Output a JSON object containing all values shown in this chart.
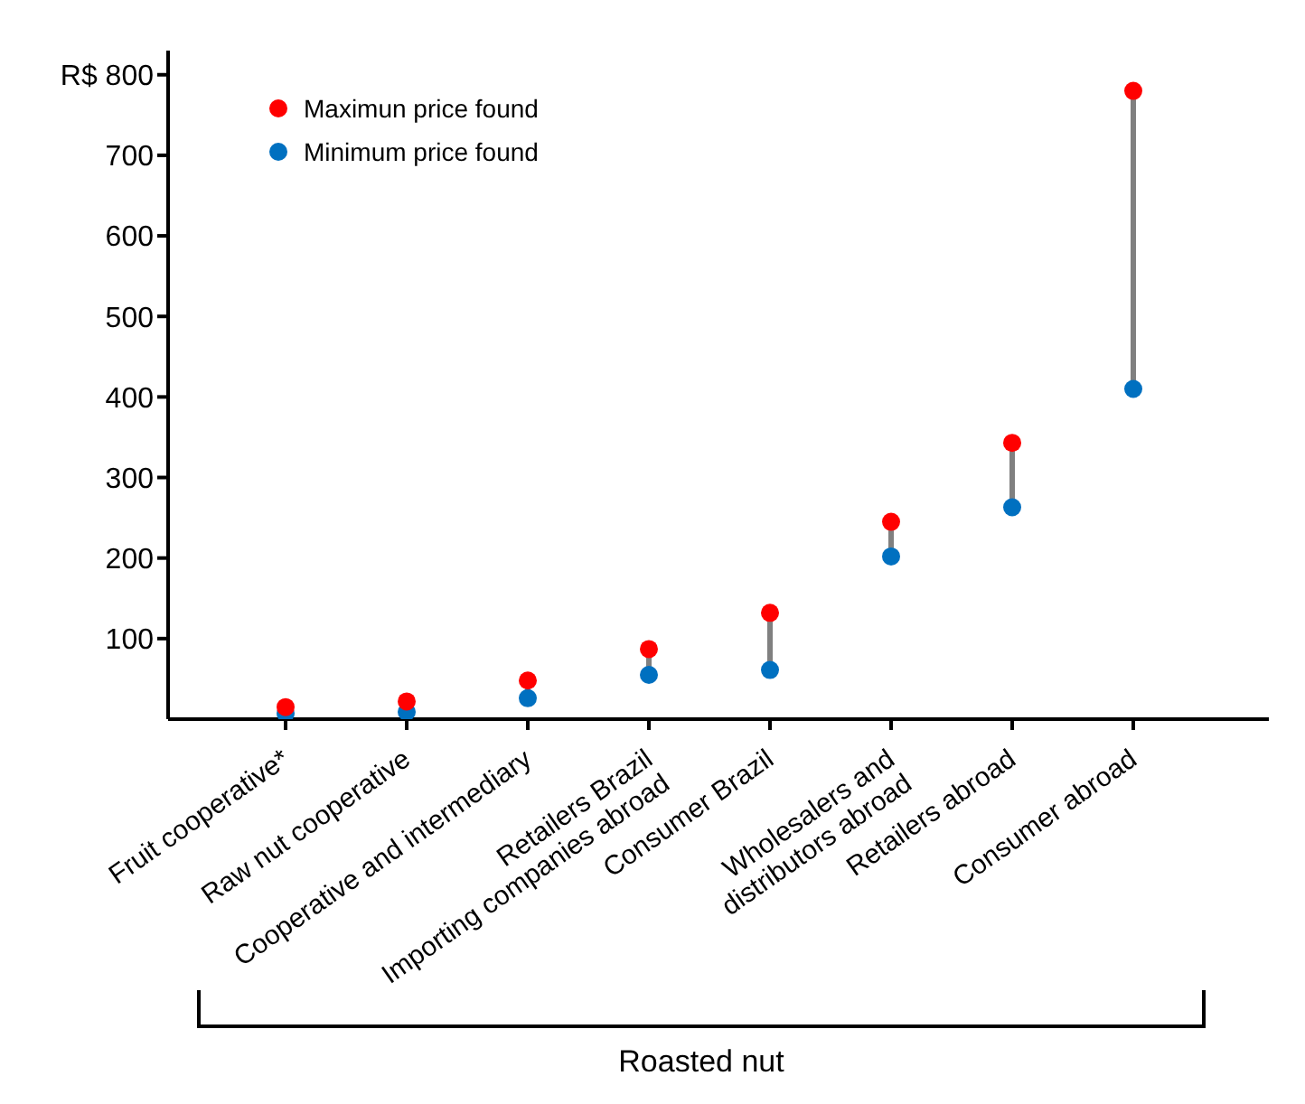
{
  "chart_data": {
    "type": "scatter",
    "categories": [
      "Fruit cooperative*",
      "Raw nut cooperative",
      "Cooperative and intermediary",
      "Retailers Brazil\nImporting companies abroad",
      "Consumer Brazil",
      "Wholesalers and\ndistributors abroad",
      "Retailers abroad",
      "Consumer abroad"
    ],
    "ylim": [
      0,
      830
    ],
    "yticks": [
      100,
      200,
      300,
      400,
      500,
      600,
      700,
      {
        "value": 800,
        "label": "R$ 800"
      }
    ],
    "series": [
      {
        "name": "Maximun price found",
        "color": "#ff0000",
        "values": [
          15,
          22,
          48,
          87,
          132,
          245,
          343,
          780
        ]
      },
      {
        "name": "Minimum price found",
        "color": "#0070c0",
        "values": [
          7,
          9,
          26,
          55,
          61,
          202,
          263,
          410
        ]
      }
    ],
    "legend": "top left",
    "marker": "circle",
    "grid": false,
    "annotations": [
      "Roasted nut"
    ]
  }
}
